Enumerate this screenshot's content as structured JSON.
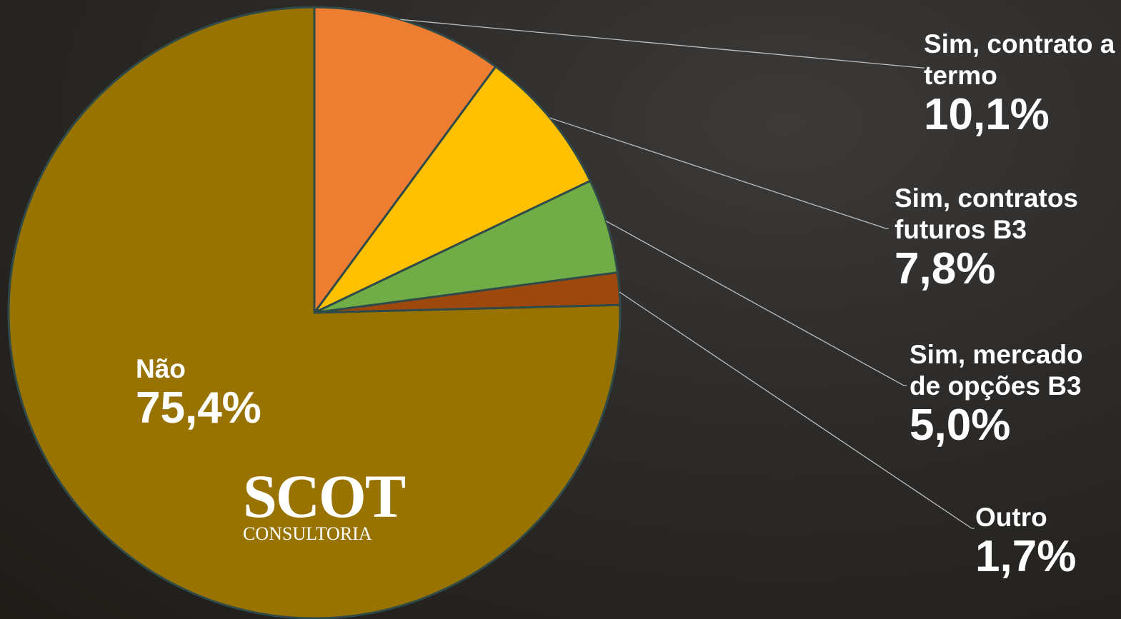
{
  "chart_data": {
    "type": "pie",
    "categories": [
      "Sim, contrato a termo",
      "Sim, contratos futuros B3",
      "Sim, mercado de opções B3",
      "Outro",
      "Não"
    ],
    "values": [
      10.1,
      7.8,
      5.0,
      1.7,
      75.4
    ],
    "value_labels": [
      "10,1%",
      "7,8%",
      "5,0%",
      "1,7%",
      "75,4%"
    ],
    "colors": [
      "#ed7d31",
      "#ffc000",
      "#70ad47",
      "#9e480e",
      "#997300"
    ]
  },
  "logo": {
    "name": "SCOT",
    "subtitle": "CONSULTORIA"
  }
}
